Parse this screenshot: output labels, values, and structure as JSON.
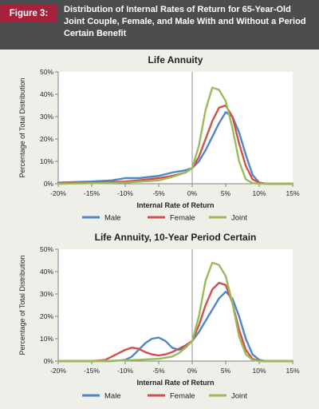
{
  "figure": {
    "label": "Figure 3:",
    "title": "Distribution of Internal Rates of Return for 65-Year-Old Joint Couple, Female, and Male With and Without a Period Certain Benefit"
  },
  "colors": {
    "header_bg": "#4b4d4f",
    "label_bg": "#a8213a",
    "panel_bg": "#efefea",
    "male": "#4f86c6",
    "female": "#d0504d",
    "joint": "#9bbb59"
  },
  "chart_data": [
    {
      "type": "line",
      "title": "Life Annuity",
      "xlabel": "Internal Rate of Return",
      "ylabel": "Percentage of Total Distribution",
      "xlim": [
        -20,
        15
      ],
      "ylim": [
        0,
        50
      ],
      "x_ticks": [
        -20,
        -15,
        -10,
        -5,
        0,
        5,
        10,
        15
      ],
      "x_tick_labels": [
        "-20%",
        "-15%",
        "-10%",
        "-5%",
        "0%",
        "5%",
        "10%",
        "15%"
      ],
      "y_ticks": [
        0,
        10,
        20,
        30,
        40,
        50
      ],
      "y_tick_labels": [
        "0%",
        "10%",
        "20%",
        "30%",
        "40%",
        "50%"
      ],
      "grid": false,
      "vline_x": 0,
      "legend": "bottom",
      "series": [
        {
          "name": "Male",
          "color": "#4f86c6",
          "x": [
            -20,
            -15,
            -12,
            -10,
            -8,
            -5,
            -3,
            -1,
            0,
            1,
            2,
            3,
            4,
            5,
            6,
            7,
            8,
            9,
            10,
            11,
            12,
            15
          ],
          "y": [
            0.5,
            1,
            1.5,
            2.5,
            2.5,
            3.5,
            5,
            6,
            7,
            10,
            15,
            21,
            27,
            32,
            30,
            23,
            13,
            4,
            0.5,
            0,
            0,
            0
          ]
        },
        {
          "name": "Female",
          "color": "#d0504d",
          "x": [
            -20,
            -15,
            -10,
            -8,
            -5,
            -3,
            -1,
            0,
            1,
            2,
            3,
            4,
            5,
            6,
            7,
            8,
            9,
            10,
            11,
            15
          ],
          "y": [
            0.2,
            0.5,
            1,
            1.5,
            2.5,
            3.5,
            5,
            7,
            12,
            20,
            28,
            34,
            35,
            30,
            18,
            8,
            2,
            0.5,
            0,
            0
          ]
        },
        {
          "name": "Joint",
          "color": "#9bbb59",
          "x": [
            -20,
            -15,
            -10,
            -5,
            -3,
            -1,
            0,
            1,
            2,
            3,
            4,
            5,
            6,
            7,
            8,
            9,
            10,
            15
          ],
          "y": [
            0,
            0.2,
            0.5,
            1.5,
            3,
            5,
            7,
            17,
            33,
            43,
            42,
            37,
            25,
            10,
            2,
            0.3,
            0,
            0
          ]
        }
      ]
    },
    {
      "type": "line",
      "title": "Life Annuity, 10-Year Period Certain",
      "xlabel": "Internal Rate of Return",
      "ylabel": "Percentage of Total Distribution",
      "xlim": [
        -20,
        15
      ],
      "ylim": [
        0,
        50
      ],
      "x_ticks": [
        -20,
        -15,
        -10,
        -5,
        0,
        5,
        10,
        15
      ],
      "x_tick_labels": [
        "-20%",
        "-15%",
        "-10%",
        "-5%",
        "0%",
        "5%",
        "10%",
        "15%"
      ],
      "y_ticks": [
        0,
        10,
        20,
        30,
        40,
        50
      ],
      "y_tick_labels": [
        "0%",
        "10%",
        "20%",
        "30%",
        "40%",
        "50%"
      ],
      "grid": false,
      "vline_x": 0,
      "legend": "bottom",
      "series": [
        {
          "name": "Male",
          "color": "#4f86c6",
          "x": [
            -20,
            -15,
            -12,
            -10,
            -9,
            -8,
            -7,
            -6,
            -5,
            -4,
            -3,
            -2,
            -1,
            0,
            1,
            2,
            3,
            4,
            5,
            6,
            7,
            8,
            9,
            10,
            11,
            15
          ],
          "y": [
            0,
            0,
            0,
            0.5,
            2,
            5,
            8,
            10,
            10.5,
            9,
            6,
            5,
            6,
            9,
            13,
            18,
            23,
            28,
            31,
            28,
            20,
            10,
            3,
            0.5,
            0,
            0
          ]
        },
        {
          "name": "Female",
          "color": "#d0504d",
          "x": [
            -20,
            -15,
            -13,
            -12,
            -11,
            -10,
            -9,
            -8,
            -7,
            -6,
            -5,
            -4,
            -3,
            -2,
            -1,
            0,
            1,
            2,
            3,
            4,
            5,
            6,
            7,
            8,
            9,
            10,
            15
          ],
          "y": [
            0,
            0,
            0.5,
            2,
            3.5,
            5,
            6,
            5.5,
            4,
            3,
            2.5,
            3,
            4,
            5.5,
            7,
            9,
            16,
            25,
            32,
            35,
            34,
            26,
            14,
            5,
            1,
            0,
            0
          ]
        },
        {
          "name": "Joint",
          "color": "#9bbb59",
          "x": [
            -20,
            -15,
            -10,
            -5,
            -3,
            -2,
            -1,
            0,
            1,
            2,
            3,
            4,
            5,
            6,
            7,
            8,
            9,
            10,
            15
          ],
          "y": [
            0,
            0,
            0.3,
            1,
            2,
            3.5,
            6,
            9,
            20,
            36,
            44,
            43,
            38,
            26,
            11,
            3,
            0.5,
            0,
            0
          ]
        }
      ]
    }
  ]
}
